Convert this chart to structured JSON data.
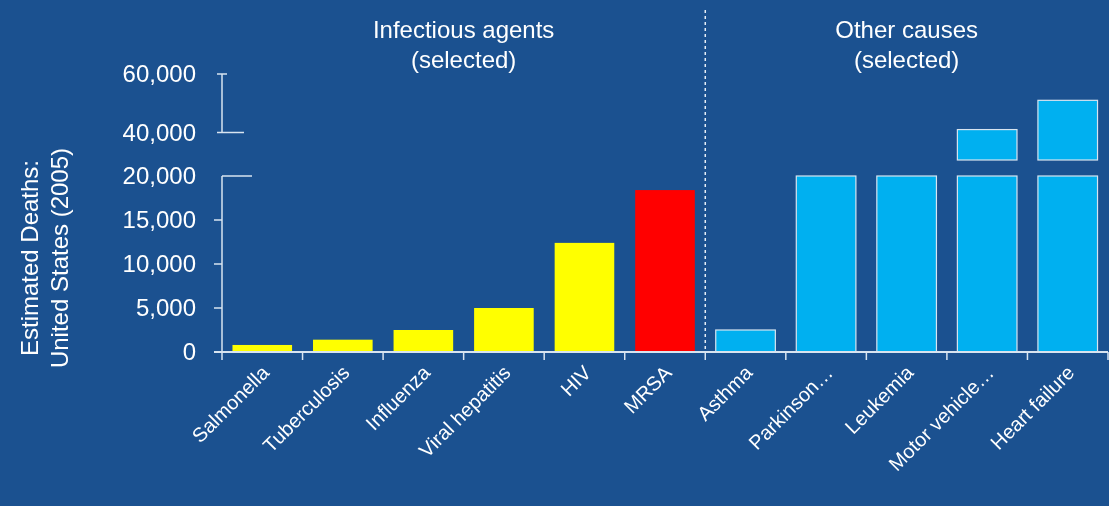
{
  "chart_data": [
    {
      "type": "bar",
      "ylabel": "Estimated Deaths:\nUnited States (2005)",
      "annotations": [
        "Infectious agents\n(selected)",
        "Other causes\n(selected)"
      ],
      "categories": [
        "Salmonella",
        "Tuberculosis",
        "Influenza",
        "Viral hepatitis",
        "HIV",
        "MRSA",
        "Asthma",
        "Parkinson…",
        "Leukemia",
        "Motor vehicle…",
        "Heart failure"
      ],
      "values": [
        800,
        1400,
        2500,
        5000,
        12400,
        18400,
        2500,
        20000,
        20000,
        20000,
        20000
      ],
      "colors": [
        "#ffff00",
        "#ffff00",
        "#ffff00",
        "#ffff00",
        "#ffff00",
        "#ff0000",
        "#00b0f0",
        "#00b0f0",
        "#00b0f0",
        "#00b0f0",
        "#00b0f0"
      ],
      "ylim": [
        0,
        20000
      ],
      "yticks": [
        0,
        {
          "value": 5000,
          "label": "5,000"
        },
        {
          "value": 10000,
          "label": "10,000"
        },
        {
          "value": 15000,
          "label": "15,000"
        },
        {
          "value": 20000,
          "label": "20,000"
        }
      ],
      "grid": false
    },
    {
      "type": "bar",
      "categories": [
        null,
        null,
        null,
        null,
        null,
        null,
        null,
        null,
        null,
        null,
        null
      ],
      "values": [
        null,
        null,
        null,
        null,
        null,
        null,
        null,
        null,
        null,
        41000,
        51000
      ],
      "color": "#00b0f0",
      "ylim": [
        30600,
        60000
      ],
      "yticks": [
        {
          "value": 40000,
          "label": "40,000"
        },
        {
          "value": 60000,
          "label": "60,000"
        }
      ],
      "tick_labels": "y",
      "grid": false
    }
  ]
}
